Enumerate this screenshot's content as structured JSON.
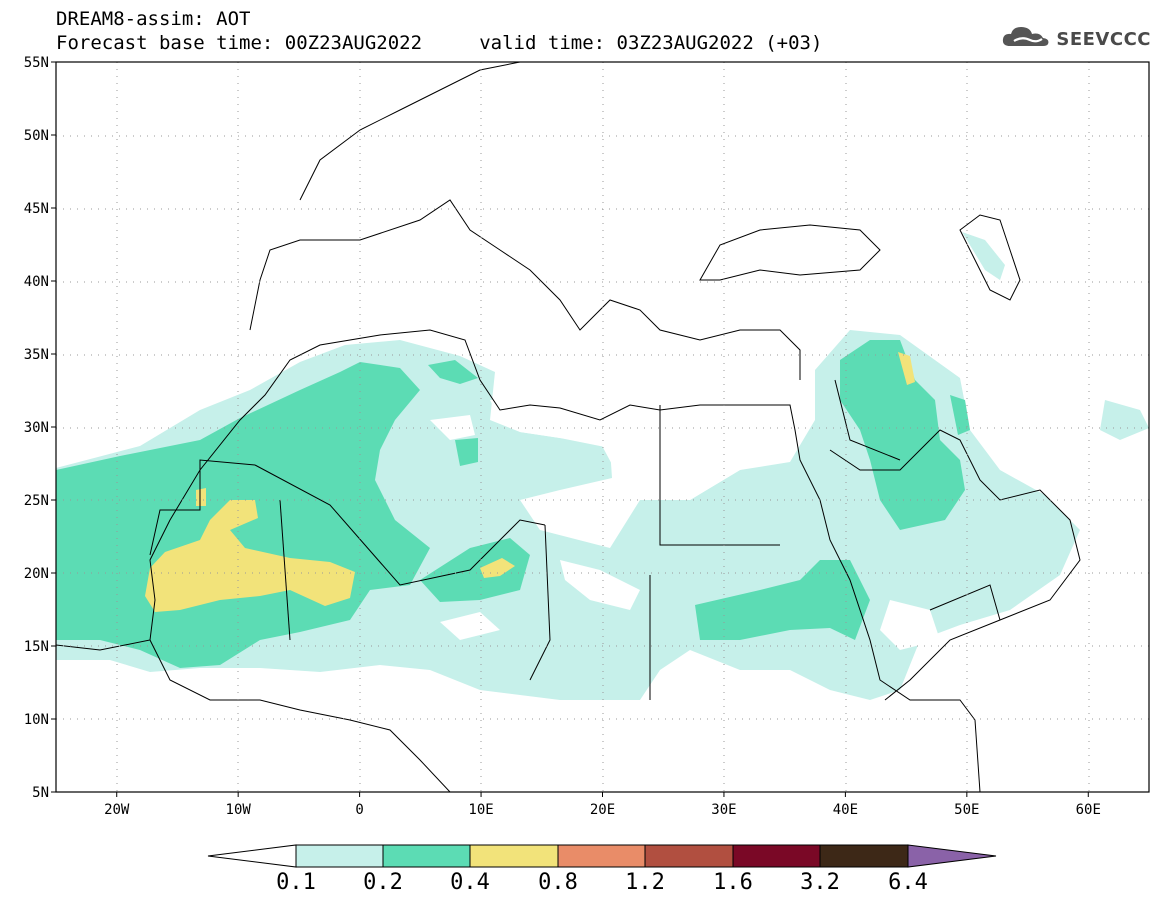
{
  "title": {
    "line1": "DREAM8-assim: AOT",
    "line2": "Forecast base time: 00Z23AUG2022     valid time: 03Z23AUG2022 (+03)"
  },
  "logo": {
    "text": "SEEVCCC",
    "icon": "cloud-icon"
  },
  "map": {
    "lat_labels": [
      "55N",
      "50N",
      "45N",
      "40N",
      "35N",
      "30N",
      "25N",
      "20N",
      "15N",
      "10N",
      "5N"
    ],
    "lon_labels": [
      "20W",
      "10W",
      "0",
      "10E",
      "20E",
      "30E",
      "40E",
      "50E",
      "60E"
    ],
    "lon_range": [
      -25,
      65
    ],
    "lat_range": [
      5,
      55
    ],
    "grid": true
  },
  "colorbar": {
    "labels": [
      "0.1",
      "0.2",
      "0.4",
      "0.8",
      "1.2",
      "1.6",
      "3.2",
      "6.4"
    ],
    "colors": [
      "#c6f0ea",
      "#5cdcb4",
      "#f2e37a",
      "#e98c68",
      "#b14f40",
      "#7a0826",
      "#3d2817",
      "#8a62a8"
    ]
  },
  "colors": {
    "level1": "#c6f0ea",
    "level2": "#5cdcb4",
    "level3": "#f2e37a"
  }
}
